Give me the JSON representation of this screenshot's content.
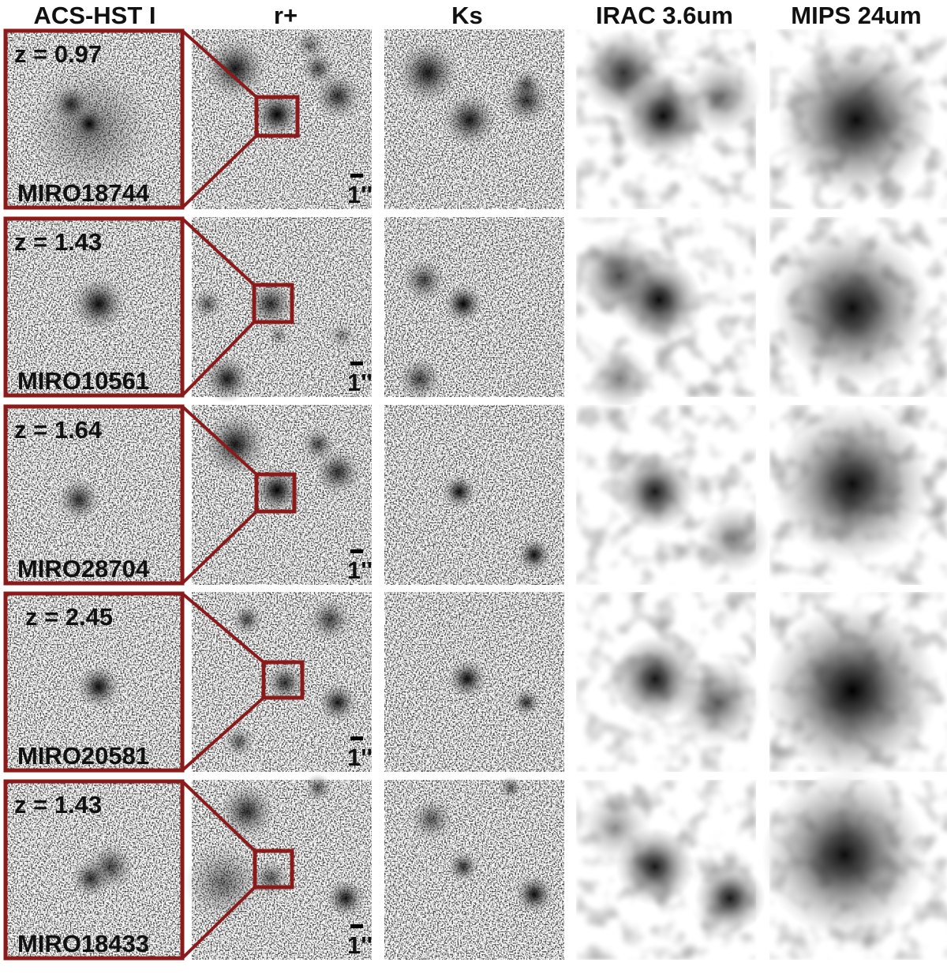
{
  "columns": [
    "ACS-HST I",
    "r+",
    "Ks",
    "IRAC 3.6um",
    "MIPS 24um"
  ],
  "rows": [
    {
      "redshift": "z = 0.97",
      "name": "MIRO18744",
      "scale": "1''"
    },
    {
      "redshift": "z = 1.43",
      "name": "MIRO10561",
      "scale": "1''"
    },
    {
      "redshift": "z = 1.64",
      "name": "MIRO28704",
      "scale": "1''"
    },
    {
      "redshift": "z = 2.45",
      "name": "MIRO20581",
      "scale": "1''"
    },
    {
      "redshift": "z = 1.43",
      "name": "MIRO18433",
      "scale": "1''"
    }
  ]
}
